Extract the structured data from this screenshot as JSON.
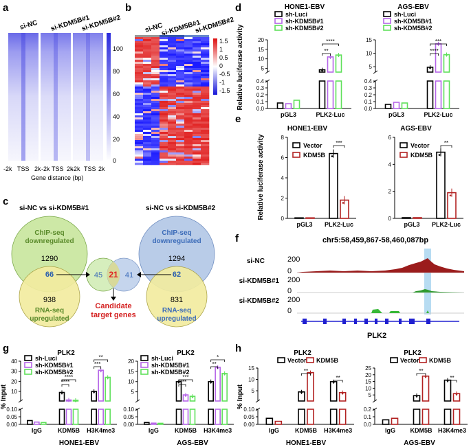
{
  "panels": {
    "a": "a",
    "b": "b",
    "c": "c",
    "d": "d",
    "e": "e",
    "f": "f",
    "g": "g",
    "h": "h"
  },
  "a": {
    "groups": [
      "si-NC",
      "si-KDM5B#1",
      "si-KDM5B#2"
    ],
    "ticks": [
      "-2k",
      "TSS",
      "2k"
    ],
    "xlabel": "Gene distance (bp)",
    "scale": [
      "100",
      "80",
      "60",
      "40",
      "20",
      "0"
    ]
  },
  "b": {
    "groups": [
      "si-NC",
      "si-KDM5B#1",
      "si-KDM5B#2"
    ],
    "scale": [
      "1.5",
      "1",
      "0.5",
      "0",
      "-0.5",
      "-1",
      "-1.5"
    ]
  },
  "c": {
    "title1": "si-NC vs si-KDM5B#1",
    "title2": "si-NC vs si-KDM5B#2",
    "chip1": "ChIP-seq",
    "chip1b": "downregulated",
    "n_chip1": "1290",
    "n_ov1": "66",
    "n_rna1": "938",
    "rna1": "RNA-seq",
    "rna1b": "upregulated",
    "chip2": "ChIP-seq",
    "chip2b": "downregulated",
    "n_chip2": "1294",
    "n_ov2": "62",
    "n_rna2": "831",
    "rna2": "RNA-seq",
    "rna2b": "upregulated",
    "n_left": "45",
    "n_mid": "21",
    "n_right": "41",
    "candidate1": "Candidate",
    "candidate2": "target genes"
  },
  "d": {
    "ylabel": "Relative luciferase activity",
    "legend": [
      "sh-Luci",
      "sh-KDM5B#1",
      "sh-KDM5B#2"
    ],
    "cats": [
      "pGL3",
      "PLK2-Luc"
    ],
    "chart_data": [
      {
        "title": "HONE1-EBV",
        "type": "bar",
        "categories": [
          "pGL3",
          "PLK2-Luc"
        ],
        "series": [
          {
            "name": "sh-Luci",
            "values": [
              0.08,
              4.2
            ]
          },
          {
            "name": "sh-KDM5B#1",
            "values": [
              0.07,
              11
            ]
          },
          {
            "name": "sh-KDM5B#2",
            "values": [
              0.12,
              12
            ]
          }
        ],
        "ticks_upper": [
          "5",
          "10",
          "15",
          "20"
        ],
        "ticks_lower": [
          "0.0",
          "0.1",
          "0.2",
          "0.3",
          "0.4"
        ],
        "sig": [
          "**",
          "****"
        ]
      },
      {
        "title": "AGS-EBV",
        "type": "bar",
        "categories": [
          "pGL3",
          "PLK2-Luc"
        ],
        "series": [
          {
            "name": "sh-Luci",
            "values": [
              0.06,
              4.8
            ]
          },
          {
            "name": "sh-KDM5B#1",
            "values": [
              0.09,
              13.5
            ]
          },
          {
            "name": "sh-KDM5B#2",
            "values": [
              0.08,
              9.5
            ]
          }
        ],
        "ticks_upper": [
          "5",
          "10",
          "15"
        ],
        "ticks_lower": [
          "0.0",
          "0.1",
          "0.2",
          "0.3",
          "0.4"
        ],
        "sig": [
          "****",
          "***"
        ]
      }
    ]
  },
  "e": {
    "ylabel": "Relative luciferase activity",
    "legend": [
      "Vector",
      "KDM5B"
    ],
    "chart_data": [
      {
        "title": "HONE1-EBV",
        "type": "bar",
        "categories": [
          "pGL3",
          "PLK2-Luc"
        ],
        "series": [
          {
            "name": "Vector",
            "values": [
              0.05,
              6.4
            ]
          },
          {
            "name": "KDM5B",
            "values": [
              0.05,
              1.8
            ]
          }
        ],
        "ylim": [
          0,
          8
        ],
        "ticks": [
          "0",
          "2",
          "4",
          "6",
          "8"
        ],
        "sig": "***"
      },
      {
        "title": "AGS-EBV",
        "type": "bar",
        "categories": [
          "pGL3",
          "PLK2-Luc"
        ],
        "series": [
          {
            "name": "Vector",
            "values": [
              0.05,
              4.9
            ]
          },
          {
            "name": "KDM5B",
            "values": [
              0.05,
              1.9
            ]
          }
        ],
        "ylim": [
          0,
          6
        ],
        "ticks": [
          "0",
          "2",
          "4",
          "6"
        ],
        "sig": "**"
      }
    ]
  },
  "f": {
    "locus": "chr5:58,459,867-58,460,087bp",
    "tracks": [
      "si-NC",
      "si-KDM5B#1",
      "si-KDM5B#2"
    ],
    "ymax": "200",
    "ymin": "0",
    "gene": "PLK2"
  },
  "g": {
    "ylabel": "% Input",
    "title": "PLK2",
    "legend": [
      "sh-Luci",
      "sh-KDM5B#1",
      "sh-KDM5B#2"
    ],
    "chart_data": [
      {
        "cell": "HONE1-EBV",
        "type": "bar",
        "categories": [
          "IgG",
          "KDM5B",
          "H3K4me3"
        ],
        "series": [
          {
            "name": "sh-Luci",
            "values": [
              0.025,
              9,
              10
            ]
          },
          {
            "name": "sh-KDM5B#1",
            "values": [
              0.015,
              1.5,
              31
            ]
          },
          {
            "name": "sh-KDM5B#2",
            "values": [
              0.012,
              1.2,
              24
            ]
          }
        ],
        "ticks_upper": [
          "10",
          "20",
          "30",
          "40"
        ],
        "ticks_lower": [
          "0.00",
          "0.05",
          "0.10"
        ],
        "sig": [
          "****",
          "****",
          "***",
          "**"
        ]
      },
      {
        "cell": "AGS-EBV",
        "type": "bar",
        "categories": [
          "IgG",
          "KDM5B",
          "H3K4me3"
        ],
        "series": [
          {
            "name": "sh-Luci",
            "values": [
              0.012,
              10,
              10
            ]
          },
          {
            "name": "sh-KDM5B#1",
            "values": [
              0.008,
              3.5,
              17
            ]
          },
          {
            "name": "sh-KDM5B#2",
            "values": [
              0.007,
              2.8,
              14
            ]
          }
        ],
        "ticks_upper": [
          "5",
          "10",
          "15",
          "20"
        ],
        "ticks_lower": [
          "0.00",
          "0.05",
          "0.10"
        ],
        "sig": [
          "****",
          "***",
          "**",
          "*"
        ]
      }
    ]
  },
  "h": {
    "ylabel": "% Input",
    "title": "PLK2",
    "legend": [
      "Vector",
      "KDM5B"
    ],
    "chart_data": [
      {
        "cell": "HONE1-EBV",
        "type": "bar",
        "categories": [
          "IgG",
          "KDM5B",
          "H3K4me3"
        ],
        "series": [
          {
            "name": "Vector",
            "values": [
              0.04,
              4.5,
              9
            ]
          },
          {
            "name": "KDM5B",
            "values": [
              0.02,
              13,
              4.2
            ]
          }
        ],
        "ticks_upper": [
          "5",
          "10",
          "15"
        ],
        "ticks_lower": [
          "0.00",
          "0.05",
          "0.10"
        ],
        "sig": [
          "**",
          "**"
        ]
      },
      {
        "cell": "AGS-EBV",
        "type": "bar",
        "categories": [
          "IgG",
          "KDM5B",
          "H3K4me3"
        ],
        "series": [
          {
            "name": "Vector",
            "values": [
              0.06,
              4.5,
              16
            ]
          },
          {
            "name": "KDM5B",
            "values": [
              0.08,
              19,
              6
            ]
          }
        ],
        "ticks_upper": [
          "5",
          "10",
          "15",
          "20",
          "25"
        ],
        "ticks_lower": [
          "0.0",
          "0.1",
          "0.2"
        ],
        "sig": [
          "**",
          "**"
        ]
      }
    ]
  },
  "colors": {
    "black": "#000000",
    "purple": "#b565e8",
    "green": "#5fe05a",
    "red": "#b22222",
    "blue": "#2323d6"
  }
}
